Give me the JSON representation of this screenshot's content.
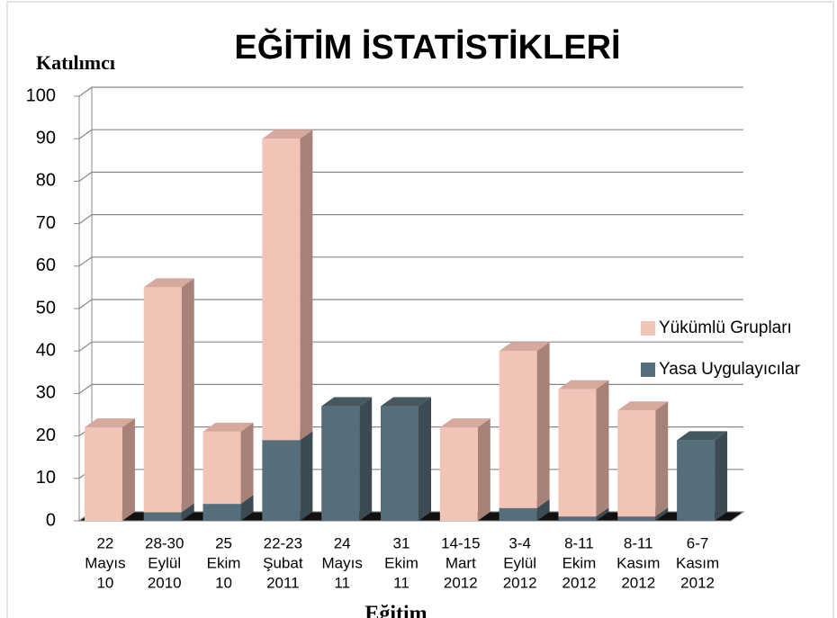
{
  "chart_data": {
    "type": "bar3d_stacked",
    "title": "EĞİTİM İSTATİSTİKLERİ",
    "y_label": "Katılımcı",
    "x_label": "Eğitim",
    "categories": [
      [
        "22",
        "Mayıs",
        "10"
      ],
      [
        "28-30",
        "Eylül",
        "2010"
      ],
      [
        "25",
        "Ekim",
        "10"
      ],
      [
        "22-23",
        "Şubat",
        "2011"
      ],
      [
        "24",
        "Mayıs",
        "11"
      ],
      [
        "31",
        "Ekim",
        "11"
      ],
      [
        "14-15",
        "Mart",
        "2012"
      ],
      [
        "3-4",
        "Eylül",
        "2012"
      ],
      [
        "8-11",
        "Ekim",
        "2012"
      ],
      [
        "8-11",
        "Kasım",
        "2012"
      ],
      [
        "6-7",
        "Kasım",
        "2012"
      ]
    ],
    "series": [
      {
        "name": "Yasa Uygulayıcılar",
        "color": "#566d7a",
        "side": "#3b4a53",
        "top": "#46585f",
        "values": [
          0,
          2,
          4,
          19,
          27,
          27,
          0,
          3,
          1,
          1,
          19
        ]
      },
      {
        "name": "Yükümlü Grupları",
        "color": "#f2c4b8",
        "side": "#a88178",
        "top": "#d7a89c",
        "values": [
          22,
          53,
          17,
          71,
          0,
          0,
          22,
          37,
          30,
          25,
          0
        ]
      }
    ],
    "ylim": [
      0,
      100
    ],
    "yticks": [
      0,
      10,
      20,
      30,
      40,
      50,
      60,
      70,
      80,
      90,
      100
    ],
    "grid": true,
    "legend": "right"
  }
}
